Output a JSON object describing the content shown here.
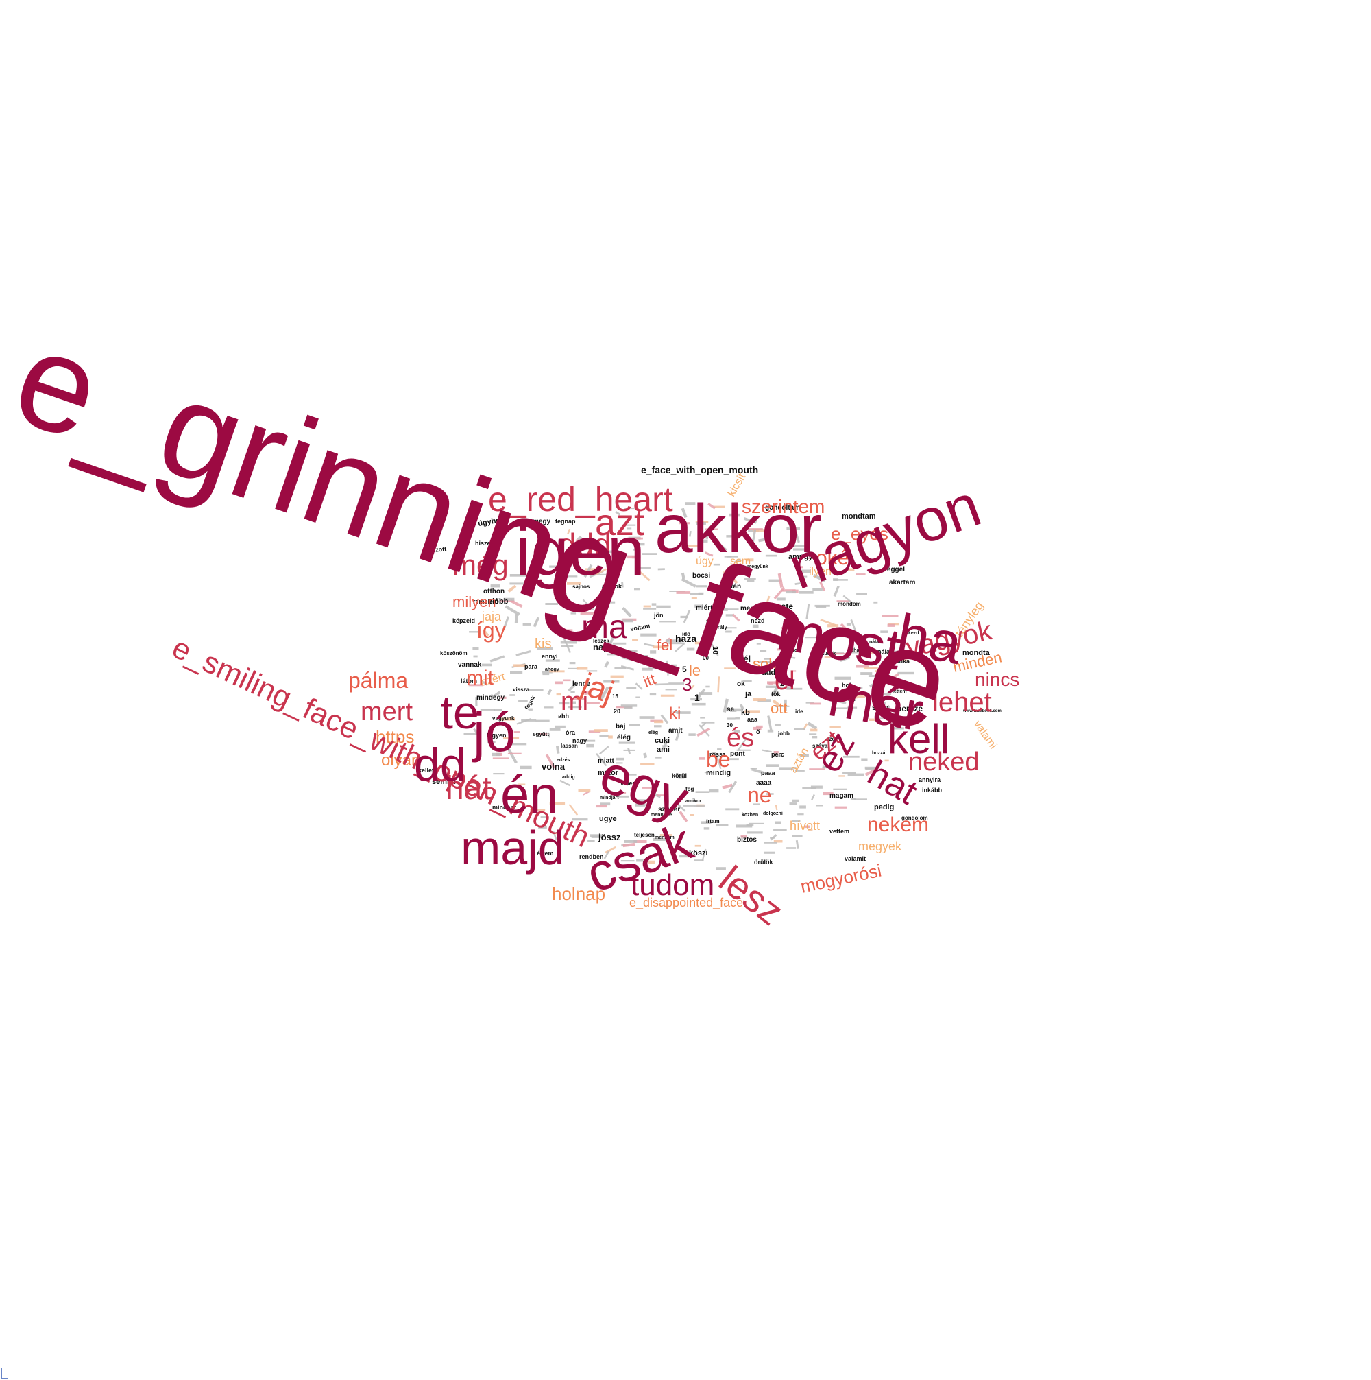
{
  "palette": {
    "dark": "#9c0a42",
    "red": "#c9344e",
    "coral": "#e85d4a",
    "orange": "#f28a4e",
    "peach": "#f6ae6b",
    "black": "#111111"
  },
  "words": [
    {
      "text": "e_grinning_face",
      "color": "dark"
    },
    {
      "text": "e_smiling_face_with_open_mouth",
      "color": "red"
    },
    {
      "text": "igen",
      "color": "dark"
    },
    {
      "text": "akkor",
      "color": "dark"
    },
    {
      "text": "nagyon",
      "color": "dark"
    },
    {
      "text": "most",
      "color": "dark"
    },
    {
      "text": "ha",
      "color": "dark"
    },
    {
      "text": "már",
      "color": "dark"
    },
    {
      "text": "e_red_heart",
      "color": "red"
    },
    {
      "text": "azt",
      "color": "red"
    },
    {
      "text": "ddd",
      "color": "red"
    },
    {
      "text": "még",
      "color": "red"
    },
    {
      "text": "te",
      "color": "dark"
    },
    {
      "text": "jó",
      "color": "dark"
    },
    {
      "text": "dd",
      "color": "dark"
    },
    {
      "text": "én",
      "color": "dark"
    },
    {
      "text": "egy",
      "color": "dark"
    },
    {
      "text": "majd",
      "color": "dark"
    },
    {
      "text": "csak",
      "color": "dark"
    },
    {
      "text": "lesz",
      "color": "red"
    },
    {
      "text": "tudom",
      "color": "dark"
    },
    {
      "text": "kell",
      "color": "dark"
    },
    {
      "text": "hat",
      "color": "dark"
    },
    {
      "text": "neked",
      "color": "red"
    },
    {
      "text": "nekem",
      "color": "coral"
    },
    {
      "text": "lehet",
      "color": "red"
    },
    {
      "text": "vagyok",
      "color": "red"
    },
    {
      "text": "szerintem",
      "color": "coral"
    },
    {
      "text": "oké",
      "color": "coral"
    },
    {
      "text": "e_eyes",
      "color": "coral"
    },
    {
      "text": "nincs",
      "color": "red"
    },
    {
      "text": "minden",
      "color": "orange"
    },
    {
      "text": "tényleg",
      "color": "peach"
    },
    {
      "text": "valami",
      "color": "peach"
    },
    {
      "text": "mogyorósi",
      "color": "coral"
    },
    {
      "text": "megyek",
      "color": "peach"
    },
    {
      "text": "hívott",
      "color": "peach"
    },
    {
      "text": "holnap",
      "color": "orange"
    },
    {
      "text": "e_disappointed_face",
      "color": "orange"
    },
    {
      "text": "pálma",
      "color": "coral"
    },
    {
      "text": "mert",
      "color": "red"
    },
    {
      "text": "https",
      "color": "orange"
    },
    {
      "text": "olyan",
      "color": "orange"
    },
    {
      "text": "hát",
      "color": "red"
    },
    {
      "text": "milyen",
      "color": "coral"
    },
    {
      "text": "így",
      "color": "coral"
    },
    {
      "text": "mit",
      "color": "coral"
    },
    {
      "text": "ma",
      "color": "dark"
    },
    {
      "text": "jaj",
      "color": "coral"
    },
    {
      "text": "mi",
      "color": "red"
    },
    {
      "text": "el",
      "color": "red"
    },
    {
      "text": "ez",
      "color": "dark"
    },
    {
      "text": "és",
      "color": "red"
    },
    {
      "text": "ezt",
      "color": "red"
    },
    {
      "text": "be",
      "color": "coral"
    },
    {
      "text": "ne",
      "color": "coral"
    },
    {
      "text": "ki",
      "color": "coral"
    },
    {
      "text": "fel",
      "color": "coral"
    },
    {
      "text": "itt",
      "color": "coral"
    },
    {
      "text": "le",
      "color": "orange"
    },
    {
      "text": "sok",
      "color": "orange"
    },
    {
      "text": "ott",
      "color": "orange"
    },
    {
      "text": "sem",
      "color": "peach"
    },
    {
      "text": "úgy",
      "color": "peach"
    },
    {
      "text": "ilyen",
      "color": "peach"
    },
    {
      "text": "aztán",
      "color": "peach"
    },
    {
      "text": "kis",
      "color": "peach"
    },
    {
      "text": "jaja",
      "color": "peach"
    },
    {
      "text": "azért",
      "color": "peach"
    },
    {
      "text": "kicsit",
      "color": "peach"
    },
    {
      "text": "e_face_with_open_mouth",
      "color": "black"
    },
    {
      "text": "gondoltam",
      "color": "black"
    },
    {
      "text": "mondtam",
      "color": "black"
    },
    {
      "text": "tegnap",
      "color": "black"
    },
    {
      "text": "megy",
      "color": "black"
    },
    {
      "text": "úgyhogy",
      "color": "black"
    },
    {
      "text": "hiszem",
      "color": "black"
    },
    {
      "text": "játszott",
      "color": "black"
    },
    {
      "text": "amúgy",
      "color": "black"
    },
    {
      "text": "reggel",
      "color": "black"
    },
    {
      "text": "akartam",
      "color": "black"
    },
    {
      "text": "bocsi",
      "color": "black"
    },
    {
      "text": "után",
      "color": "black"
    },
    {
      "text": "este",
      "color": "black"
    },
    {
      "text": "miért",
      "color": "black"
    },
    {
      "text": "menni",
      "color": "black"
    },
    {
      "text": "mondta",
      "color": "black"
    },
    {
      "text": "haza",
      "color": "black"
    },
    {
      "text": "nap",
      "color": "black"
    },
    {
      "text": "fél",
      "color": "black"
    },
    {
      "text": "persze",
      "color": "black"
    },
    {
      "text": "szép",
      "color": "black"
    },
    {
      "text": "előbb",
      "color": "black"
    },
    {
      "text": "otthon",
      "color": "black"
    },
    {
      "text": "remelem",
      "color": "black"
    },
    {
      "text": "képzeld",
      "color": "black"
    },
    {
      "text": "köszönöm",
      "color": "black"
    },
    {
      "text": "vannak",
      "color": "black"
    },
    {
      "text": "látom",
      "color": "black"
    },
    {
      "text": "mindegy",
      "color": "black"
    },
    {
      "text": "lenne",
      "color": "black"
    },
    {
      "text": "legyen",
      "color": "black"
    },
    {
      "text": "kellett",
      "color": "black"
    },
    {
      "text": "semmi",
      "color": "black"
    },
    {
      "text": "mindent",
      "color": "black"
    },
    {
      "text": "volna",
      "color": "black"
    },
    {
      "text": "mikor",
      "color": "black"
    },
    {
      "text": "miatt",
      "color": "black"
    },
    {
      "text": "cuki",
      "color": "black"
    },
    {
      "text": "ami",
      "color": "black"
    },
    {
      "text": "baj",
      "color": "black"
    },
    {
      "text": "óra",
      "color": "black"
    },
    {
      "text": "nagy",
      "color": "black"
    },
    {
      "text": "para",
      "color": "black"
    },
    {
      "text": "élég",
      "color": "black"
    },
    {
      "text": "amit",
      "color": "black"
    },
    {
      "text": "mindig",
      "color": "black"
    },
    {
      "text": "körül",
      "color": "black"
    },
    {
      "text": "aaaa",
      "color": "black"
    },
    {
      "text": "paaa",
      "color": "black"
    },
    {
      "text": "perc",
      "color": "black"
    },
    {
      "text": "pont",
      "color": "black"
    },
    {
      "text": "rossz",
      "color": "black"
    },
    {
      "text": "dddd",
      "color": "black"
    },
    {
      "text": "ok",
      "color": "black"
    },
    {
      "text": "ja",
      "color": "black"
    },
    {
      "text": "se",
      "color": "black"
    },
    {
      "text": "kb",
      "color": "black"
    },
    {
      "text": "aaa",
      "color": "black"
    },
    {
      "text": "magam",
      "color": "black"
    },
    {
      "text": "pedig",
      "color": "black"
    },
    {
      "text": "gondolom",
      "color": "black"
    },
    {
      "text": "annyira",
      "color": "black"
    },
    {
      "text": "inkább",
      "color": "black"
    },
    {
      "text": "biztos",
      "color": "black"
    },
    {
      "text": "vettem",
      "color": "black"
    },
    {
      "text": "valamit",
      "color": "black"
    },
    {
      "text": "örülök",
      "color": "black"
    },
    {
      "text": "jössz",
      "color": "black"
    },
    {
      "text": "köszi",
      "color": "black"
    },
    {
      "text": "értem",
      "color": "black"
    },
    {
      "text": "rendben",
      "color": "black"
    },
    {
      "text": "ugye",
      "color": "black"
    },
    {
      "text": "szuper",
      "color": "black"
    },
    {
      "text": "veled",
      "color": "black"
    },
    {
      "text": "teljesen",
      "color": "black"
    },
    {
      "text": "vagyunk",
      "color": "black"
    },
    {
      "text": "együtt",
      "color": "black"
    },
    {
      "text": "ahh",
      "color": "black"
    },
    {
      "text": "fogok",
      "color": "black"
    },
    {
      "text": "ennyi",
      "color": "black"
    },
    {
      "text": "voltam",
      "color": "black"
    },
    {
      "text": "leszek",
      "color": "black"
    },
    {
      "text": "sajnos",
      "color": "black"
    },
    {
      "text": "megyünk",
      "color": "black"
    },
    {
      "text": "nézd",
      "color": "black"
    },
    {
      "text": "szar",
      "color": "black"
    },
    {
      "text": "jön",
      "color": "black"
    },
    {
      "text": "idő",
      "color": "black"
    },
    {
      "text": "király",
      "color": "black"
    },
    {
      "text": "mondom",
      "color": "black"
    },
    {
      "text": "munka",
      "color": "black"
    },
    {
      "text": "nálad",
      "color": "black"
    },
    {
      "text": "hol",
      "color": "black"
    },
    {
      "text": "más",
      "color": "black"
    },
    {
      "text": "tudod",
      "color": "black"
    },
    {
      "text": "tudok",
      "color": "black"
    },
    {
      "text": "közben",
      "color": "black"
    },
    {
      "text": "www.facebook.com",
      "color": "black"
    },
    {
      "text": "dolgozni",
      "color": "black"
    },
    {
      "text": "mennyire",
      "color": "black"
    },
    {
      "text": "mindjárt",
      "color": "black"
    },
    {
      "text": "lassan",
      "color": "black"
    },
    {
      "text": "vissza",
      "color": "black"
    },
    {
      "text": "ide",
      "color": "black"
    },
    {
      "text": "ezek",
      "color": "black"
    },
    {
      "text": "fog",
      "color": "black"
    },
    {
      "text": "írtam",
      "color": "black"
    },
    {
      "text": "szóval",
      "color": "black"
    },
    {
      "text": "jobb",
      "color": "black"
    },
    {
      "text": "amikor",
      "color": "black"
    },
    {
      "text": "hozzá",
      "color": "black"
    },
    {
      "text": "oda",
      "color": "black"
    },
    {
      "text": "néha",
      "color": "black"
    },
    {
      "text": "lettem",
      "color": "black"
    },
    {
      "text": "kezd",
      "color": "black"
    },
    {
      "text": "elég",
      "color": "black"
    },
    {
      "text": "ahogy",
      "color": "black"
    },
    {
      "text": "akarok",
      "color": "black"
    },
    {
      "text": "edzés",
      "color": "black"
    },
    {
      "text": "addig",
      "color": "black"
    },
    {
      "text": "mennem",
      "color": "black"
    },
    {
      "text": "ő",
      "color": "black"
    },
    {
      "text": "tök",
      "color": "black"
    },
    {
      "text": "nálam",
      "color": "black"
    },
    {
      "text": "3",
      "color": "dark"
    },
    {
      "text": "5",
      "color": "black"
    },
    {
      "text": "10",
      "color": "black"
    },
    {
      "text": "1",
      "color": "black"
    },
    {
      "text": "20",
      "color": "black"
    },
    {
      "text": "15",
      "color": "black"
    },
    {
      "text": "2",
      "color": "black"
    },
    {
      "text": "30",
      "color": "black"
    },
    {
      "text": "00",
      "color": "black"
    }
  ]
}
